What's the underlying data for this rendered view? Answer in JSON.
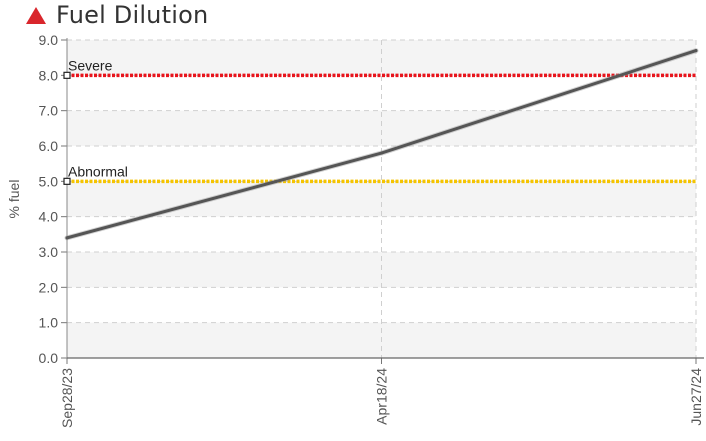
{
  "header": {
    "title": "Fuel Dilution",
    "status_icon": "warning-triangle-icon",
    "status_color": "#d9262c"
  },
  "chart_data": {
    "type": "line",
    "title": "Fuel Dilution",
    "xlabel": "",
    "ylabel": "% fuel",
    "x": [
      "Sep28/23",
      "Apr18/24",
      "Jun27/24"
    ],
    "ylim": [
      0,
      9
    ],
    "yticks": [
      "0.0",
      "1.0",
      "2.0",
      "3.0",
      "4.0",
      "5.0",
      "6.0",
      "7.0",
      "8.0",
      "9.0"
    ],
    "grid": true,
    "series": [
      {
        "values": [
          3.4,
          5.8,
          8.7
        ],
        "color": "#555555"
      }
    ],
    "thresholds": [
      {
        "label": "Severe",
        "value": 8.0,
        "color": "#e8141c"
      },
      {
        "label": "Abnormal",
        "value": 5.0,
        "color": "#f5c400"
      }
    ]
  }
}
